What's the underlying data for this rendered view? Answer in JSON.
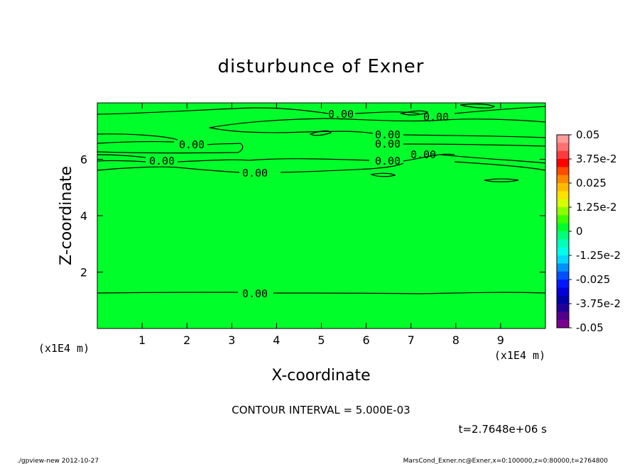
{
  "chart_data": {
    "type": "heatmap",
    "title": "disturbunce of Exner",
    "xlabel": "X-coordinate",
    "ylabel": "Z-coordinate",
    "x_unit": "(x1E4 m)",
    "y_unit": "(x1E4 m)",
    "xlim": [
      0,
      10
    ],
    "ylim": [
      0,
      8
    ],
    "x_ticks": [
      "1",
      "2",
      "3",
      "4",
      "5",
      "6",
      "7",
      "8",
      "9"
    ],
    "y_ticks": [
      "2",
      "4",
      "6"
    ],
    "x_tick_values": [
      1,
      2,
      3,
      4,
      5,
      6,
      7,
      8,
      9
    ],
    "y_tick_values": [
      2,
      4,
      6
    ],
    "field_value": 0,
    "fill_color": "#00ff2a",
    "contour_label": "0.00",
    "contour_interval": "CONTOUR INTERVAL = 5.000E-03",
    "time": "t=2.7648e+06 s",
    "colorbar": {
      "labels": [
        "0.05",
        "3.75e-2",
        "0.025",
        "1.25e-2",
        "0",
        "-1.25e-2",
        "-0.025",
        "-3.75e-2",
        "-0.05"
      ],
      "colors": [
        "#ff9a9a",
        "#ff7070",
        "#ff3a3a",
        "#ff0000",
        "#ff4a00",
        "#ff8800",
        "#ffba00",
        "#ffe000",
        "#d6ff00",
        "#8cff00",
        "#3cff00",
        "#00ff2a",
        "#00ff78",
        "#00ffb8",
        "#00ffe8",
        "#00d8ff",
        "#0090ff",
        "#0050ff",
        "#0018ff",
        "#0000d8",
        "#0000a8",
        "#20009c",
        "#50008c",
        "#7a0090"
      ]
    }
  },
  "footer": {
    "left": "./gpview-new  2012-10-27",
    "right": "MarsCond_Exner.nc@Exner,x=0:100000,z=0:80000,t=2764800"
  }
}
